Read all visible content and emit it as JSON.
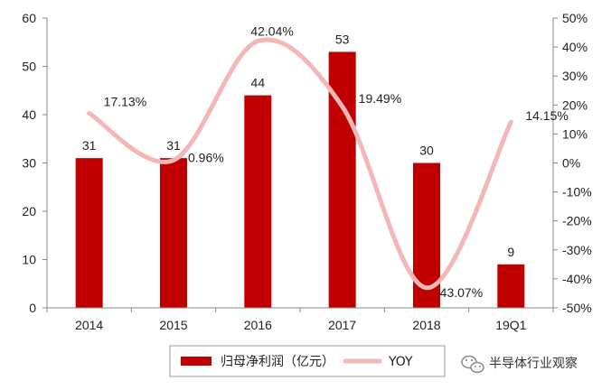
{
  "chart_data": {
    "type": "bar",
    "categories": [
      "2014",
      "2015",
      "2016",
      "2017",
      "2018",
      "19Q1"
    ],
    "series": [
      {
        "name": "归母净利润（亿元）",
        "type": "bar",
        "axis": "left",
        "values": [
          31,
          31,
          44,
          53,
          30,
          9
        ],
        "value_labels": [
          "31",
          "31",
          "44",
          "53",
          "30",
          "9"
        ]
      },
      {
        "name": "YOY",
        "type": "line",
        "axis": "right",
        "values": [
          17.13,
          0.96,
          42.04,
          19.49,
          -43.07,
          14.15
        ],
        "value_labels": [
          "17.13%",
          "0.96%",
          "42.04%",
          "19.49%",
          "-43.07%",
          "14.15%"
        ]
      }
    ],
    "y_left": {
      "min": 0,
      "max": 60,
      "ticks": [
        "0",
        "10",
        "20",
        "30",
        "40",
        "50",
        "60"
      ]
    },
    "y_right": {
      "min": -50,
      "max": 50,
      "ticks": [
        "-50%",
        "-40%",
        "-30%",
        "-20%",
        "-10%",
        "0%",
        "10%",
        "20%",
        "30%",
        "40%",
        "50%"
      ]
    },
    "legend_position": "bottom",
    "grid": false,
    "colors": {
      "bar": "#c00000",
      "line": "#f4b6b6"
    }
  },
  "watermark": {
    "text": "半导体行业观察",
    "icon": "wechat-icon"
  }
}
